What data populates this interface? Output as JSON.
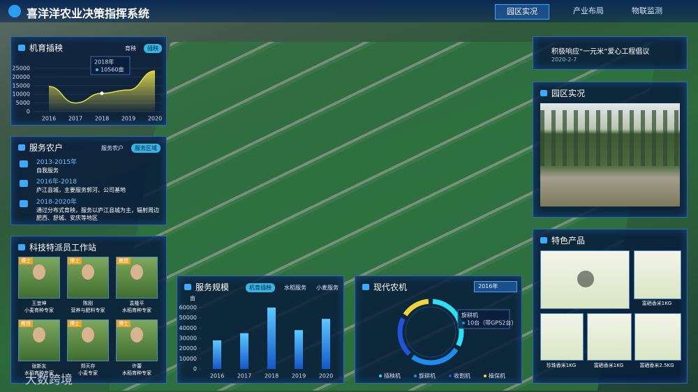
{
  "header": {
    "title": "喜洋洋农业决策指挥系统",
    "nav": [
      "园区实况",
      "产业布局",
      "物联监测"
    ]
  },
  "chart_data": [
    {
      "type": "area",
      "title": "机育插秧",
      "tabs": [
        "育秧",
        "插秧"
      ],
      "categories": [
        "2016",
        "2017",
        "2018",
        "2019",
        "2020"
      ],
      "values": [
        14500,
        5000,
        10560,
        12500,
        23500
      ],
      "color": "#e8e04a",
      "ylim": [
        0,
        25000
      ],
      "yticks": [
        0,
        5000,
        10000,
        15000,
        20000,
        25000
      ],
      "tooltip": {
        "title": "2018年",
        "text": "10560亩"
      }
    },
    {
      "type": "bar",
      "title": "服务规模",
      "tabs": [
        "机育插秧",
        "水稻服务",
        "小麦服务"
      ],
      "y_unit": "亩",
      "categories": [
        "2016",
        "2017",
        "2018",
        "2019",
        "2020"
      ],
      "values": [
        28000,
        35000,
        60000,
        38000,
        49000
      ],
      "color": "#2a9df4",
      "ylim": [
        0,
        60000
      ],
      "yticks": [
        0,
        10000,
        20000,
        30000,
        40000,
        50000,
        60000
      ]
    },
    {
      "type": "pie",
      "title": "现代农机",
      "selector": "2016年",
      "categories": [
        "插秧机",
        "旋耕机",
        "收割机",
        "植保机"
      ],
      "values": [
        12,
        10,
        8,
        6
      ],
      "colors": [
        "#2ee0f5",
        "#1f8cf0",
        "#2354d6",
        "#f0d53a"
      ],
      "tooltip": {
        "title": "旋耕机",
        "text": "10台（带GPS2台）"
      }
    }
  ],
  "farmers": {
    "title": "服务农户",
    "tabs": [
      "服务农户",
      "服务区域"
    ],
    "timeline": [
      {
        "period": "2013-2015年",
        "text": "自我服务"
      },
      {
        "period": "2016年-2018",
        "text": "庐江县城，主要服务郭河、公司基地"
      },
      {
        "period": "2018-2020年",
        "text": "通过分布式育秧，服务以庐江县城为主，辐射周边肥西、舒城、安庆等地区"
      }
    ]
  },
  "experts": {
    "title": "科技特派员工作站",
    "people": [
      {
        "badge": "博士",
        "name": "王宜坤",
        "role": "小麦育种专家"
      },
      {
        "badge": "博士",
        "name": "陈刚",
        "role": "营养与肥料专家"
      },
      {
        "badge": "教授",
        "name": "袁隆平",
        "role": "水稻育种专家"
      },
      {
        "badge": "教授",
        "name": "张新友",
        "role": "水稻育种专家"
      },
      {
        "badge": "博士",
        "name": "郑天存",
        "role": "小麦专家"
      },
      {
        "badge": "博士",
        "name": "许蕾",
        "role": "水稻育种专家"
      }
    ]
  },
  "notice": {
    "text": "积极响应“一元米”爱心工程倡议",
    "date": "2020-2-7"
  },
  "park": {
    "title": "园区实况"
  },
  "products": {
    "title": "特色产品",
    "items": [
      "富硒香米1KG",
      "珍珠香米1KG",
      "富硒香米1KG",
      "富硒香米2.5KG"
    ]
  },
  "watermark": "大数跨境"
}
